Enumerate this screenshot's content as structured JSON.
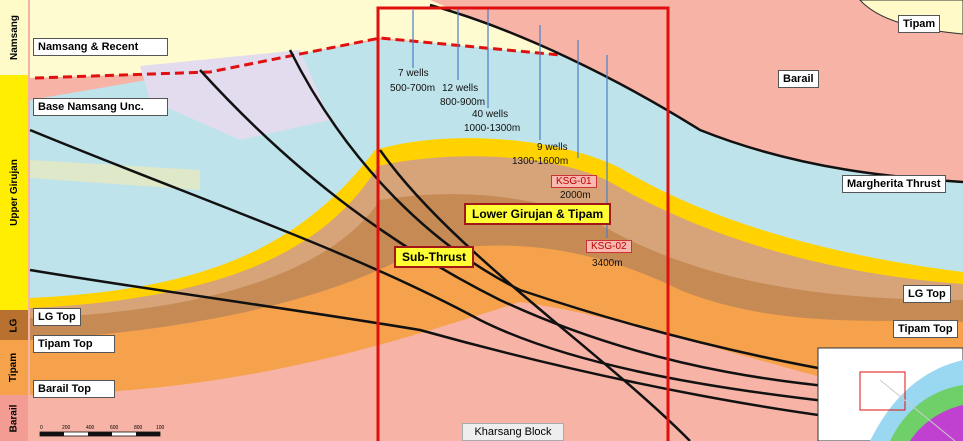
{
  "stratigraphy": [
    "Namsang",
    "Upper Girujan",
    "LG",
    "Tipam",
    "Barail"
  ],
  "left_labels": [
    "Namsang & Recent",
    "Base Namsang Unc.",
    "LG Top",
    "Tipam Top",
    "Barail Top"
  ],
  "right_labels": [
    "Tipam",
    "Barail",
    "Margherita Thrust",
    "LG Top",
    "Tipam Top"
  ],
  "wells": [
    {
      "count": "7 wells",
      "depth": "500-700m"
    },
    {
      "count": "12 wells",
      "depth": "800-900m"
    },
    {
      "count": "40 wells",
      "depth": "1000-1300m"
    },
    {
      "count": "9 wells",
      "depth": "1300-1600m"
    }
  ],
  "boreholes": [
    {
      "name": "KSG-01",
      "depth": "2000m"
    },
    {
      "name": "KSG-02",
      "depth": "3400m"
    }
  ],
  "plays": [
    "Lower Girujan & Tipam",
    "Sub-Thrust"
  ],
  "block": "Kharsang Block",
  "scale": [
    "0",
    "200",
    "400",
    "600",
    "800",
    "100"
  ]
}
